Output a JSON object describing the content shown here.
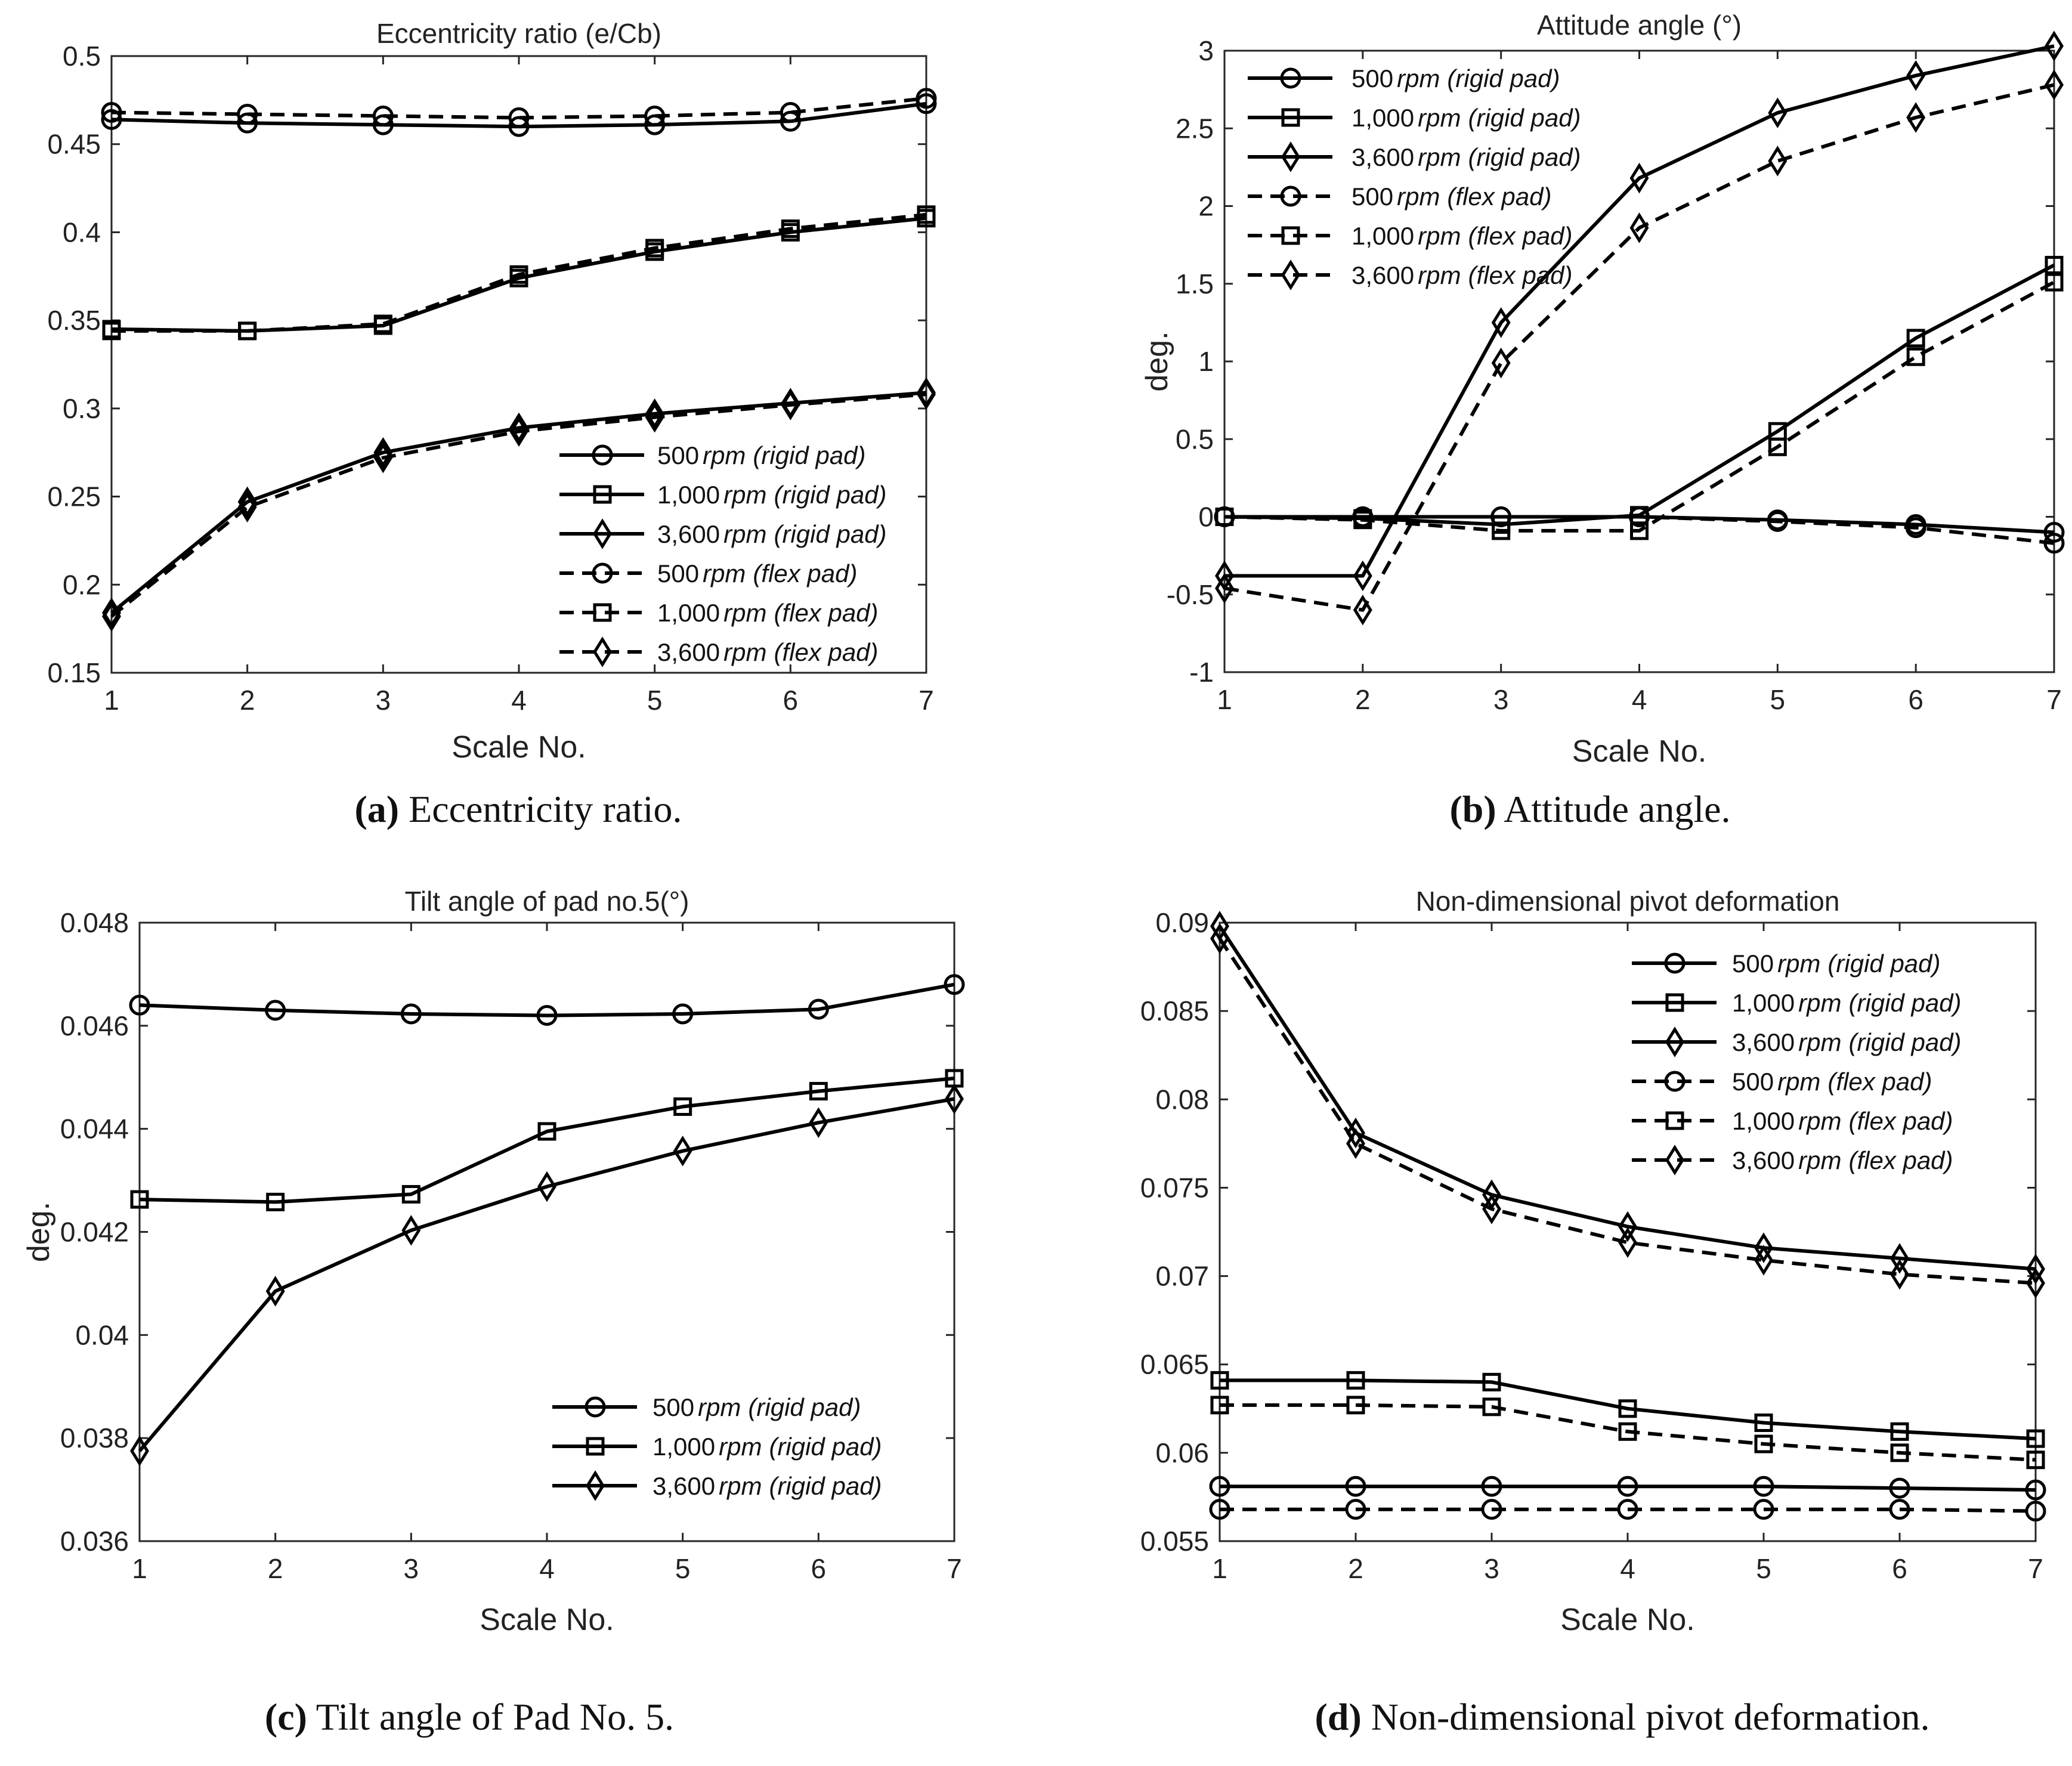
{
  "colors": {
    "line": "#000000",
    "axis": "#262626",
    "background": "#ffffff"
  },
  "chart_data": [
    {
      "type": "line",
      "title": "Eccentricity ratio (e/Cb)",
      "xlabel": "Scale No.",
      "ylabel": "",
      "xlim": [
        1,
        7
      ],
      "ylim": [
        0.15,
        0.5
      ],
      "xticks": [
        1,
        2,
        3,
        4,
        5,
        6,
        7
      ],
      "yticks": [
        0.15,
        0.2,
        0.25,
        0.3,
        0.35,
        0.4,
        0.45,
        0.5
      ],
      "ytick_labels": [
        "0.15",
        "0.2",
        "0.25",
        "0.3",
        "0.35",
        "0.4",
        "0.45",
        "0.5"
      ],
      "legend_location": "lower-right",
      "caption": {
        "letter": "(a)",
        "text": " Eccentricity ratio."
      },
      "x": [
        1,
        2,
        3,
        4,
        5,
        6,
        7
      ],
      "series": [
        {
          "name": "500 rpm (rigid pad)",
          "rpm": "500",
          "unit": "rpm",
          "pad": "(rigid pad)",
          "marker": "circle",
          "dash": "solid",
          "values": [
            0.464,
            0.462,
            0.461,
            0.46,
            0.461,
            0.463,
            0.473
          ]
        },
        {
          "name": "1,000 rpm (rigid pad)",
          "rpm": "1,000",
          "unit": "rpm",
          "pad": "(rigid pad)",
          "marker": "square",
          "dash": "solid",
          "values": [
            0.345,
            0.344,
            0.347,
            0.374,
            0.389,
            0.4,
            0.408
          ]
        },
        {
          "name": "3,600 rpm (rigid pad)",
          "rpm": "3,600",
          "unit": "rpm",
          "pad": "(rigid pad)",
          "marker": "diamond",
          "dash": "solid",
          "values": [
            0.184,
            0.247,
            0.275,
            0.289,
            0.297,
            0.303,
            0.309
          ]
        },
        {
          "name": "500 rpm (flex pad)",
          "rpm": "500",
          "unit": "rpm",
          "pad": "(flex pad)",
          "marker": "circle",
          "dash": "dashed",
          "values": [
            0.468,
            0.467,
            0.466,
            0.465,
            0.466,
            0.468,
            0.476
          ]
        },
        {
          "name": "1,000 rpm (flex pad)",
          "rpm": "1,000",
          "unit": "rpm",
          "pad": "(flex pad)",
          "marker": "square",
          "dash": "dashed",
          "values": [
            0.344,
            0.344,
            0.348,
            0.376,
            0.391,
            0.402,
            0.41
          ]
        },
        {
          "name": "3,600 rpm (flex pad)",
          "rpm": "3,600",
          "unit": "rpm",
          "pad": "(flex pad)",
          "marker": "diamond",
          "dash": "dashed",
          "values": [
            0.182,
            0.244,
            0.272,
            0.287,
            0.295,
            0.302,
            0.308
          ]
        }
      ]
    },
    {
      "type": "line",
      "title": "Attitude angle (°)",
      "xlabel": "Scale No.",
      "ylabel": "deg.",
      "xlim": [
        1,
        7
      ],
      "ylim": [
        -1,
        3
      ],
      "xticks": [
        1,
        2,
        3,
        4,
        5,
        6,
        7
      ],
      "yticks": [
        -1,
        -0.5,
        0,
        0.5,
        1,
        1.5,
        2,
        2.5,
        3
      ],
      "ytick_labels": [
        "-1",
        "-0.5",
        "0",
        "0.5",
        "1",
        "1.5",
        "2",
        "2.5",
        "3"
      ],
      "legend_location": "top-left",
      "caption": {
        "letter": "(b)",
        "text": " Attitude angle."
      },
      "x": [
        1,
        2,
        3,
        4,
        5,
        6,
        7
      ],
      "series": [
        {
          "name": "500 rpm (rigid pad)",
          "rpm": "500",
          "unit": "rpm",
          "pad": "(rigid pad)",
          "marker": "circle",
          "dash": "solid",
          "values": [
            0.0,
            0.0,
            0.0,
            0.0,
            -0.02,
            -0.05,
            -0.1
          ]
        },
        {
          "name": "1,000 rpm (rigid pad)",
          "rpm": "1,000",
          "unit": "rpm",
          "pad": "(rigid pad)",
          "marker": "square",
          "dash": "solid",
          "values": [
            0.0,
            -0.01,
            -0.05,
            0.01,
            0.55,
            1.15,
            1.62
          ]
        },
        {
          "name": "3,600 rpm (rigid pad)",
          "rpm": "3,600",
          "unit": "rpm",
          "pad": "(rigid pad)",
          "marker": "diamond",
          "dash": "solid",
          "values": [
            -0.38,
            -0.38,
            1.25,
            2.18,
            2.6,
            2.84,
            3.03
          ]
        },
        {
          "name": "500 rpm (flex pad)",
          "rpm": "500",
          "unit": "rpm",
          "pad": "(flex pad)",
          "marker": "circle",
          "dash": "dashed",
          "values": [
            0.0,
            0.0,
            0.0,
            0.0,
            -0.03,
            -0.07,
            -0.17
          ]
        },
        {
          "name": "1,000 rpm (flex pad)",
          "rpm": "1,000",
          "unit": "rpm",
          "pad": "(flex pad)",
          "marker": "square",
          "dash": "dashed",
          "values": [
            0.0,
            -0.02,
            -0.09,
            -0.09,
            0.45,
            1.03,
            1.51
          ]
        },
        {
          "name": "3,600 rpm (flex pad)",
          "rpm": "3,600",
          "unit": "rpm",
          "pad": "(flex pad)",
          "marker": "diamond",
          "dash": "dashed",
          "values": [
            -0.46,
            -0.6,
            0.99,
            1.86,
            2.29,
            2.57,
            2.78
          ]
        }
      ]
    },
    {
      "type": "line",
      "title": "Tilt angle of pad no.5(°)",
      "xlabel": "Scale No.",
      "ylabel": "deg.",
      "xlim": [
        1,
        7
      ],
      "ylim": [
        0.036,
        0.048
      ],
      "xticks": [
        1,
        2,
        3,
        4,
        5,
        6,
        7
      ],
      "yticks": [
        0.036,
        0.038,
        0.04,
        0.042,
        0.044,
        0.046,
        0.048
      ],
      "ytick_labels": [
        "0.036",
        "0.038",
        "0.04",
        "0.042",
        "0.044",
        "0.046",
        "0.048"
      ],
      "legend_location": "lower-right",
      "caption": {
        "letter": "(c)",
        "text": " Tilt angle of Pad No. 5."
      },
      "x": [
        1,
        2,
        3,
        4,
        5,
        6,
        7
      ],
      "series": [
        {
          "name": "500 rpm (rigid pad)",
          "rpm": "500",
          "unit": "rpm",
          "pad": "(rigid pad)",
          "marker": "circle",
          "dash": "solid",
          "values": [
            0.0464,
            0.0463,
            0.04623,
            0.0462,
            0.04623,
            0.04632,
            0.0468
          ]
        },
        {
          "name": "1,000 rpm (rigid pad)",
          "rpm": "1,000",
          "unit": "rpm",
          "pad": "(rigid pad)",
          "marker": "square",
          "dash": "solid",
          "values": [
            0.04263,
            0.04258,
            0.04273,
            0.04395,
            0.04443,
            0.04473,
            0.04498
          ]
        },
        {
          "name": "3,600 rpm (rigid pad)",
          "rpm": "3,600",
          "unit": "rpm",
          "pad": "(rigid pad)",
          "marker": "diamond",
          "dash": "solid",
          "values": [
            0.03775,
            0.04085,
            0.04203,
            0.04288,
            0.04357,
            0.04412,
            0.04458
          ]
        }
      ]
    },
    {
      "type": "line",
      "title": "Non-dimensional pivot deformation",
      "xlabel": "Scale No.",
      "ylabel": "",
      "xlim": [
        1,
        7
      ],
      "ylim": [
        0.055,
        0.09
      ],
      "xticks": [
        1,
        2,
        3,
        4,
        5,
        6,
        7
      ],
      "yticks": [
        0.055,
        0.06,
        0.065,
        0.07,
        0.075,
        0.08,
        0.085,
        0.09
      ],
      "ytick_labels": [
        "0.055",
        "0.06",
        "0.065",
        "0.07",
        "0.075",
        "0.08",
        "0.085",
        "0.09"
      ],
      "legend_location": "top-right",
      "caption": {
        "letter": "(d)",
        "text": " Non-dimensional pivot deformation."
      },
      "x": [
        1,
        2,
        3,
        4,
        5,
        6,
        7
      ],
      "series": [
        {
          "name": "500 rpm (rigid pad)",
          "rpm": "500",
          "unit": "rpm",
          "pad": "(rigid pad)",
          "marker": "circle",
          "dash": "solid",
          "values": [
            0.0581,
            0.0581,
            0.0581,
            0.0581,
            0.0581,
            0.058,
            0.0579
          ]
        },
        {
          "name": "1,000 rpm (rigid pad)",
          "rpm": "1,000",
          "unit": "rpm",
          "pad": "(rigid pad)",
          "marker": "square",
          "dash": "solid",
          "values": [
            0.0641,
            0.0641,
            0.064,
            0.0625,
            0.0617,
            0.0612,
            0.0608
          ]
        },
        {
          "name": "3,600 rpm (rigid pad)",
          "rpm": "3,600",
          "unit": "rpm",
          "pad": "(rigid pad)",
          "marker": "diamond",
          "dash": "solid",
          "values": [
            0.0898,
            0.0781,
            0.0746,
            0.0728,
            0.0716,
            0.071,
            0.0704
          ]
        },
        {
          "name": "500 rpm (flex pad)",
          "rpm": "500",
          "unit": "rpm",
          "pad": "(flex pad)",
          "marker": "circle",
          "dash": "dashed",
          "values": [
            0.0568,
            0.0568,
            0.0568,
            0.0568,
            0.0568,
            0.0568,
            0.0567
          ]
        },
        {
          "name": "1,000 rpm (flex pad)",
          "rpm": "1,000",
          "unit": "rpm",
          "pad": "(flex pad)",
          "marker": "square",
          "dash": "dashed",
          "values": [
            0.0627,
            0.0627,
            0.0626,
            0.0612,
            0.0605,
            0.06,
            0.0596
          ]
        },
        {
          "name": "3,600 rpm (flex pad)",
          "rpm": "3,600",
          "unit": "rpm",
          "pad": "(flex pad)",
          "marker": "diamond",
          "dash": "dashed",
          "values": [
            0.0891,
            0.0775,
            0.0738,
            0.0719,
            0.0709,
            0.0701,
            0.0696
          ]
        }
      ]
    }
  ]
}
